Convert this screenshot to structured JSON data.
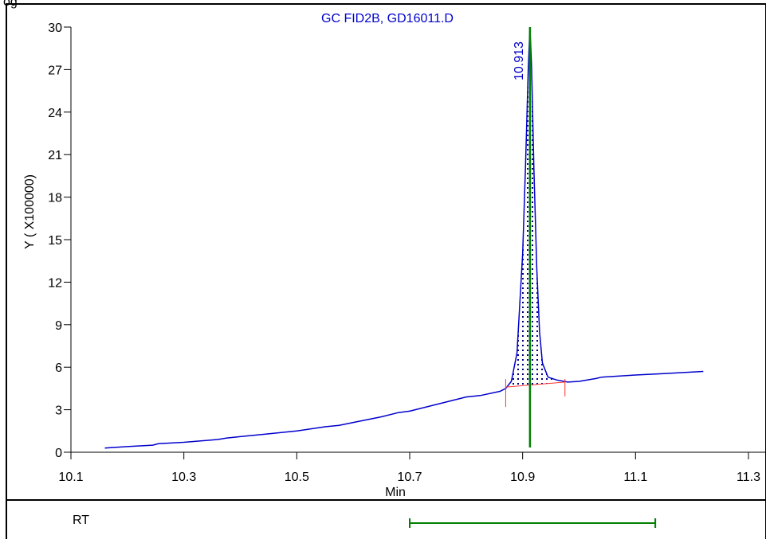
{
  "header": {
    "partial_text": "og"
  },
  "chart_data": {
    "type": "line",
    "title": "GC FID2B, GD16011.D",
    "xlabel": "Min",
    "ylabel": "Y ( X100000)",
    "xlim": [
      10.1,
      11.3
    ],
    "ylim": [
      0,
      30
    ],
    "x_ticks": [
      "10.1",
      "10.3",
      "10.5",
      "10.7",
      "10.9",
      "11.1",
      "11.3"
    ],
    "y_ticks": [
      "0",
      "3",
      "6",
      "9",
      "12",
      "15",
      "18",
      "21",
      "24",
      "27",
      "30"
    ],
    "series": [
      {
        "color": "#0000cc",
        "x": [
          10.16,
          10.2,
          10.245,
          10.255,
          10.3,
          10.36,
          10.375,
          10.4,
          10.45,
          10.5,
          10.55,
          10.575,
          10.6,
          10.65,
          10.68,
          10.7,
          10.75,
          10.8,
          10.825,
          10.86,
          10.87,
          10.88,
          10.89,
          10.9,
          10.905,
          10.91,
          10.913,
          10.916,
          10.92,
          10.925,
          10.93,
          10.935,
          10.945,
          10.96,
          10.98,
          11.0,
          11.03,
          11.04,
          11.1,
          11.15,
          11.22
        ],
        "y": [
          0.3,
          0.4,
          0.5,
          0.6,
          0.7,
          0.9,
          1.0,
          1.1,
          1.3,
          1.5,
          1.8,
          1.9,
          2.1,
          2.5,
          2.8,
          2.9,
          3.4,
          3.9,
          4.0,
          4.3,
          4.5,
          5.0,
          7.0,
          14.0,
          20.0,
          27.0,
          30.0,
          27.0,
          20.0,
          13.0,
          8.5,
          6.3,
          5.3,
          5.1,
          4.95,
          5.0,
          5.2,
          5.3,
          5.45,
          5.55,
          5.7
        ]
      }
    ],
    "peaks": [
      {
        "rt": 10.913,
        "label": "10.913",
        "baseline_start": [
          10.87,
          4.6
        ],
        "baseline_end": [
          10.975,
          4.95
        ]
      }
    ],
    "retention_marker_x": 10.913,
    "rt_bar": {
      "label": "RT",
      "x_start": 10.7,
      "x_end": 11.135
    },
    "colors": {
      "trace": "#0000cc",
      "baseline": "#ff3333",
      "marker": "#008000",
      "fill_dots": "#000080"
    }
  }
}
